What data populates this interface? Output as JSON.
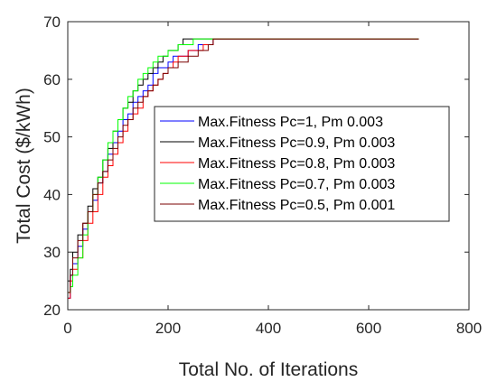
{
  "chart_data": {
    "type": "line",
    "title": "",
    "xlabel": "Total No. of Iterations",
    "ylabel": "Total Cost ($/kWh)",
    "xlim": [
      0,
      800
    ],
    "ylim": [
      20,
      70
    ],
    "xticks": [
      0,
      200,
      400,
      600,
      800
    ],
    "yticks": [
      20,
      30,
      40,
      50,
      60,
      70
    ],
    "grid": false,
    "legend_position": "center-right",
    "series": [
      {
        "name": "Max.Fitness Pc=1, Pm 0.003",
        "color": "#0000ff",
        "x": [
          0,
          5,
          10,
          20,
          30,
          40,
          50,
          60,
          70,
          80,
          90,
          100,
          110,
          120,
          130,
          140,
          150,
          160,
          170,
          180,
          190,
          200,
          210,
          220,
          230,
          240,
          250,
          260,
          270,
          280,
          290,
          700
        ],
        "y": [
          22,
          26,
          28,
          31,
          34,
          37,
          39,
          42,
          44,
          47,
          49,
          51,
          53,
          54,
          56,
          57,
          58,
          59,
          61,
          62,
          62,
          63,
          64,
          64,
          64,
          65,
          65,
          66,
          66,
          66,
          67,
          67
        ]
      },
      {
        "name": "Max.Fitness Pc=0.9, Pm 0.003",
        "color": "#000000",
        "x": [
          0,
          5,
          10,
          20,
          30,
          40,
          50,
          60,
          70,
          80,
          90,
          100,
          110,
          120,
          130,
          140,
          150,
          160,
          170,
          180,
          190,
          200,
          210,
          220,
          230,
          240,
          250,
          260,
          270,
          700
        ],
        "y": [
          25,
          27,
          30,
          33,
          35,
          38,
          41,
          43,
          46,
          48,
          51,
          53,
          55,
          56,
          58,
          59,
          60,
          61,
          62,
          63,
          64,
          65,
          65,
          66,
          67,
          67,
          67,
          67,
          67,
          67
        ]
      },
      {
        "name": "Max.Fitness Pc=0.8, Pm 0.003",
        "color": "#ff0000",
        "x": [
          0,
          5,
          10,
          20,
          30,
          40,
          50,
          60,
          70,
          80,
          90,
          100,
          110,
          120,
          130,
          140,
          150,
          160,
          170,
          180,
          190,
          200,
          210,
          220,
          230,
          240,
          250,
          260,
          270,
          280,
          290,
          700
        ],
        "y": [
          22,
          25,
          27,
          29,
          32,
          35,
          37,
          40,
          43,
          45,
          47,
          49,
          51,
          53,
          54,
          55,
          57,
          58,
          59,
          60,
          61,
          62,
          63,
          64,
          64,
          65,
          65,
          65,
          66,
          66,
          67,
          67
        ]
      },
      {
        "name": "Max.Fitness Pc=0.7, Pm 0.003",
        "color": "#00ff00",
        "x": [
          0,
          5,
          10,
          20,
          30,
          40,
          50,
          60,
          70,
          80,
          90,
          100,
          110,
          120,
          130,
          140,
          150,
          160,
          170,
          180,
          190,
          200,
          210,
          220,
          230,
          240,
          250,
          260,
          700
        ],
        "y": [
          23,
          24,
          26,
          29,
          33,
          37,
          40,
          43,
          46,
          49,
          51,
          53,
          55,
          57,
          58,
          60,
          61,
          62,
          63,
          64,
          64,
          65,
          65,
          66,
          66,
          66,
          67,
          67,
          67
        ]
      },
      {
        "name": "Max.Fitness Pc=0.5, Pm 0.001",
        "color": "#7a0000",
        "x": [
          0,
          5,
          10,
          20,
          30,
          40,
          50,
          60,
          70,
          80,
          90,
          100,
          110,
          120,
          130,
          140,
          150,
          160,
          170,
          180,
          190,
          200,
          210,
          220,
          230,
          240,
          250,
          260,
          270,
          280,
          290,
          700
        ],
        "y": [
          23,
          26,
          29,
          32,
          35,
          37,
          40,
          42,
          44,
          46,
          48,
          50,
          52,
          53,
          55,
          56,
          57,
          58,
          59,
          60,
          61,
          62,
          62,
          63,
          63,
          64,
          64,
          65,
          65,
          66,
          67,
          67
        ]
      }
    ]
  }
}
